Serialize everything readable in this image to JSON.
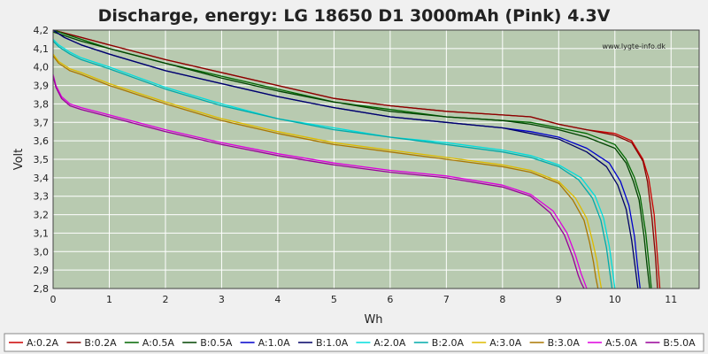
{
  "chart_data": {
    "type": "line",
    "title": "Discharge, energy: LG 18650 D1 3000mAh (Pink) 4.3V",
    "xlabel": "Wh",
    "ylabel": "Volt",
    "watermark": "www.lygte-info.dk",
    "xlim": [
      0,
      11.5
    ],
    "ylim": [
      2.8,
      4.2
    ],
    "xticks": [
      "0",
      "1",
      "2",
      "3",
      "4",
      "5",
      "6",
      "7",
      "8",
      "9",
      "10",
      "11"
    ],
    "yticks": [
      "2,8",
      "2,9",
      "3,0",
      "3,1",
      "3,2",
      "3,3",
      "3,4",
      "3,5",
      "3,6",
      "3,7",
      "3,8",
      "3,9",
      "4,0",
      "4,1",
      "4,2"
    ],
    "grid": true,
    "legend_position": "bottom",
    "colors": {
      "plot_bg": "#b8cab0",
      "grid": "#ffffff",
      "page_bg": "#f0f0f0"
    },
    "series": [
      {
        "name": "A:0.2A",
        "color": "#cc0000",
        "x": [
          0,
          0.5,
          1,
          2,
          3,
          4,
          5,
          6,
          7,
          8,
          8.5,
          9,
          9.5,
          10,
          10.3,
          10.5,
          10.6,
          10.7,
          10.75,
          10.8
        ],
        "y": [
          4.2,
          4.16,
          4.12,
          4.04,
          3.97,
          3.9,
          3.83,
          3.79,
          3.76,
          3.74,
          3.73,
          3.69,
          3.66,
          3.64,
          3.6,
          3.5,
          3.4,
          3.2,
          3.0,
          2.8
        ]
      },
      {
        "name": "B:0.2A",
        "color": "#880000",
        "x": [
          0,
          0.5,
          1,
          2,
          3,
          4,
          5,
          6,
          7,
          8,
          8.5,
          9,
          9.5,
          10,
          10.3,
          10.5,
          10.58,
          10.66,
          10.72,
          10.76
        ],
        "y": [
          4.2,
          4.16,
          4.12,
          4.04,
          3.97,
          3.9,
          3.83,
          3.79,
          3.76,
          3.74,
          3.73,
          3.69,
          3.66,
          3.63,
          3.59,
          3.49,
          3.38,
          3.18,
          2.98,
          2.8
        ]
      },
      {
        "name": "A:0.5A",
        "color": "#006600",
        "x": [
          0,
          0.5,
          1,
          2,
          3,
          4,
          5,
          6,
          7,
          8,
          8.5,
          9,
          9.5,
          10,
          10.2,
          10.35,
          10.45,
          10.55,
          10.6,
          10.65
        ],
        "y": [
          4.2,
          4.15,
          4.1,
          4.02,
          3.95,
          3.88,
          3.81,
          3.77,
          3.73,
          3.71,
          3.7,
          3.67,
          3.64,
          3.58,
          3.5,
          3.4,
          3.3,
          3.1,
          2.95,
          2.8
        ]
      },
      {
        "name": "B:0.5A",
        "color": "#004400",
        "x": [
          0,
          0.5,
          1,
          2,
          3,
          4,
          5,
          6,
          7,
          8,
          8.5,
          9,
          9.5,
          10,
          10.2,
          10.33,
          10.43,
          10.52,
          10.57,
          10.62
        ],
        "y": [
          4.19,
          4.14,
          4.1,
          4.02,
          3.94,
          3.87,
          3.81,
          3.76,
          3.73,
          3.71,
          3.69,
          3.66,
          3.62,
          3.56,
          3.48,
          3.38,
          3.28,
          3.08,
          2.93,
          2.8
        ]
      },
      {
        "name": "A:1.0A",
        "color": "#0000cc",
        "x": [
          0,
          0.2,
          0.5,
          1,
          2,
          3,
          4,
          5,
          6,
          7,
          8,
          8.5,
          9,
          9.5,
          9.9,
          10.1,
          10.25,
          10.35,
          10.4,
          10.45
        ],
        "y": [
          4.2,
          4.16,
          4.12,
          4.07,
          3.98,
          3.91,
          3.84,
          3.78,
          3.73,
          3.7,
          3.67,
          3.65,
          3.62,
          3.56,
          3.48,
          3.38,
          3.25,
          3.08,
          2.93,
          2.8
        ]
      },
      {
        "name": "B:1.0A",
        "color": "#000066",
        "x": [
          0,
          0.2,
          0.5,
          1,
          2,
          3,
          4,
          5,
          6,
          7,
          8,
          8.5,
          9,
          9.5,
          9.85,
          10.05,
          10.2,
          10.3,
          10.36,
          10.41
        ],
        "y": [
          4.2,
          4.16,
          4.12,
          4.07,
          3.98,
          3.91,
          3.84,
          3.78,
          3.73,
          3.7,
          3.67,
          3.64,
          3.61,
          3.54,
          3.46,
          3.36,
          3.23,
          3.06,
          2.92,
          2.8
        ]
      },
      {
        "name": "A:2.0A",
        "color": "#00dddd",
        "x": [
          0,
          0.1,
          0.3,
          0.5,
          1,
          2,
          3,
          4,
          5,
          6,
          7,
          8,
          8.5,
          9,
          9.4,
          9.65,
          9.8,
          9.9,
          9.95,
          10.0
        ],
        "y": [
          4.15,
          4.12,
          4.08,
          4.05,
          4.0,
          3.89,
          3.8,
          3.72,
          3.67,
          3.62,
          3.59,
          3.55,
          3.52,
          3.47,
          3.4,
          3.3,
          3.18,
          3.03,
          2.92,
          2.8
        ]
      },
      {
        "name": "B:2.0A",
        "color": "#00aaaa",
        "x": [
          0,
          0.1,
          0.3,
          0.5,
          1,
          2,
          3,
          4,
          5,
          6,
          7,
          8,
          8.5,
          9,
          9.35,
          9.6,
          9.75,
          9.85,
          9.9,
          9.95
        ],
        "y": [
          4.14,
          4.11,
          4.07,
          4.04,
          3.99,
          3.88,
          3.79,
          3.72,
          3.66,
          3.62,
          3.58,
          3.54,
          3.51,
          3.46,
          3.39,
          3.29,
          3.17,
          3.02,
          2.91,
          2.8
        ]
      },
      {
        "name": "A:3.0A",
        "color": "#ddbb00",
        "x": [
          0,
          0.1,
          0.3,
          0.5,
          1,
          2,
          3,
          4,
          5,
          6,
          7,
          8,
          8.5,
          9,
          9.3,
          9.5,
          9.6,
          9.68,
          9.72,
          9.76
        ],
        "y": [
          4.07,
          4.03,
          3.99,
          3.97,
          3.91,
          3.81,
          3.72,
          3.65,
          3.59,
          3.55,
          3.51,
          3.47,
          3.44,
          3.38,
          3.29,
          3.18,
          3.06,
          2.95,
          2.87,
          2.8
        ]
      },
      {
        "name": "B:3.0A",
        "color": "#aa7700",
        "x": [
          0,
          0.1,
          0.3,
          0.5,
          1,
          2,
          3,
          4,
          5,
          6,
          7,
          8,
          8.5,
          9,
          9.25,
          9.45,
          9.55,
          9.62,
          9.66,
          9.7
        ],
        "y": [
          4.06,
          4.02,
          3.98,
          3.96,
          3.9,
          3.8,
          3.71,
          3.64,
          3.58,
          3.54,
          3.5,
          3.46,
          3.43,
          3.37,
          3.28,
          3.17,
          3.05,
          2.94,
          2.86,
          2.8
        ]
      },
      {
        "name": "A:5.0A",
        "color": "#dd00dd",
        "x": [
          0,
          0.05,
          0.15,
          0.3,
          0.5,
          1,
          2,
          3,
          4,
          5,
          6,
          7,
          8,
          8.5,
          8.9,
          9.15,
          9.3,
          9.4,
          9.45,
          9.5
        ],
        "y": [
          3.96,
          3.9,
          3.84,
          3.8,
          3.78,
          3.74,
          3.66,
          3.59,
          3.53,
          3.48,
          3.44,
          3.41,
          3.36,
          3.31,
          3.22,
          3.1,
          2.98,
          2.88,
          2.84,
          2.8
        ]
      },
      {
        "name": "B:5.0A",
        "color": "#990099",
        "x": [
          0,
          0.05,
          0.15,
          0.3,
          0.5,
          1,
          2,
          3,
          4,
          5,
          6,
          7,
          8,
          8.5,
          8.85,
          9.1,
          9.25,
          9.35,
          9.4,
          9.45
        ],
        "y": [
          3.95,
          3.89,
          3.83,
          3.79,
          3.77,
          3.73,
          3.65,
          3.58,
          3.52,
          3.47,
          3.43,
          3.4,
          3.35,
          3.3,
          3.21,
          3.09,
          2.97,
          2.87,
          2.83,
          2.8
        ]
      }
    ]
  }
}
